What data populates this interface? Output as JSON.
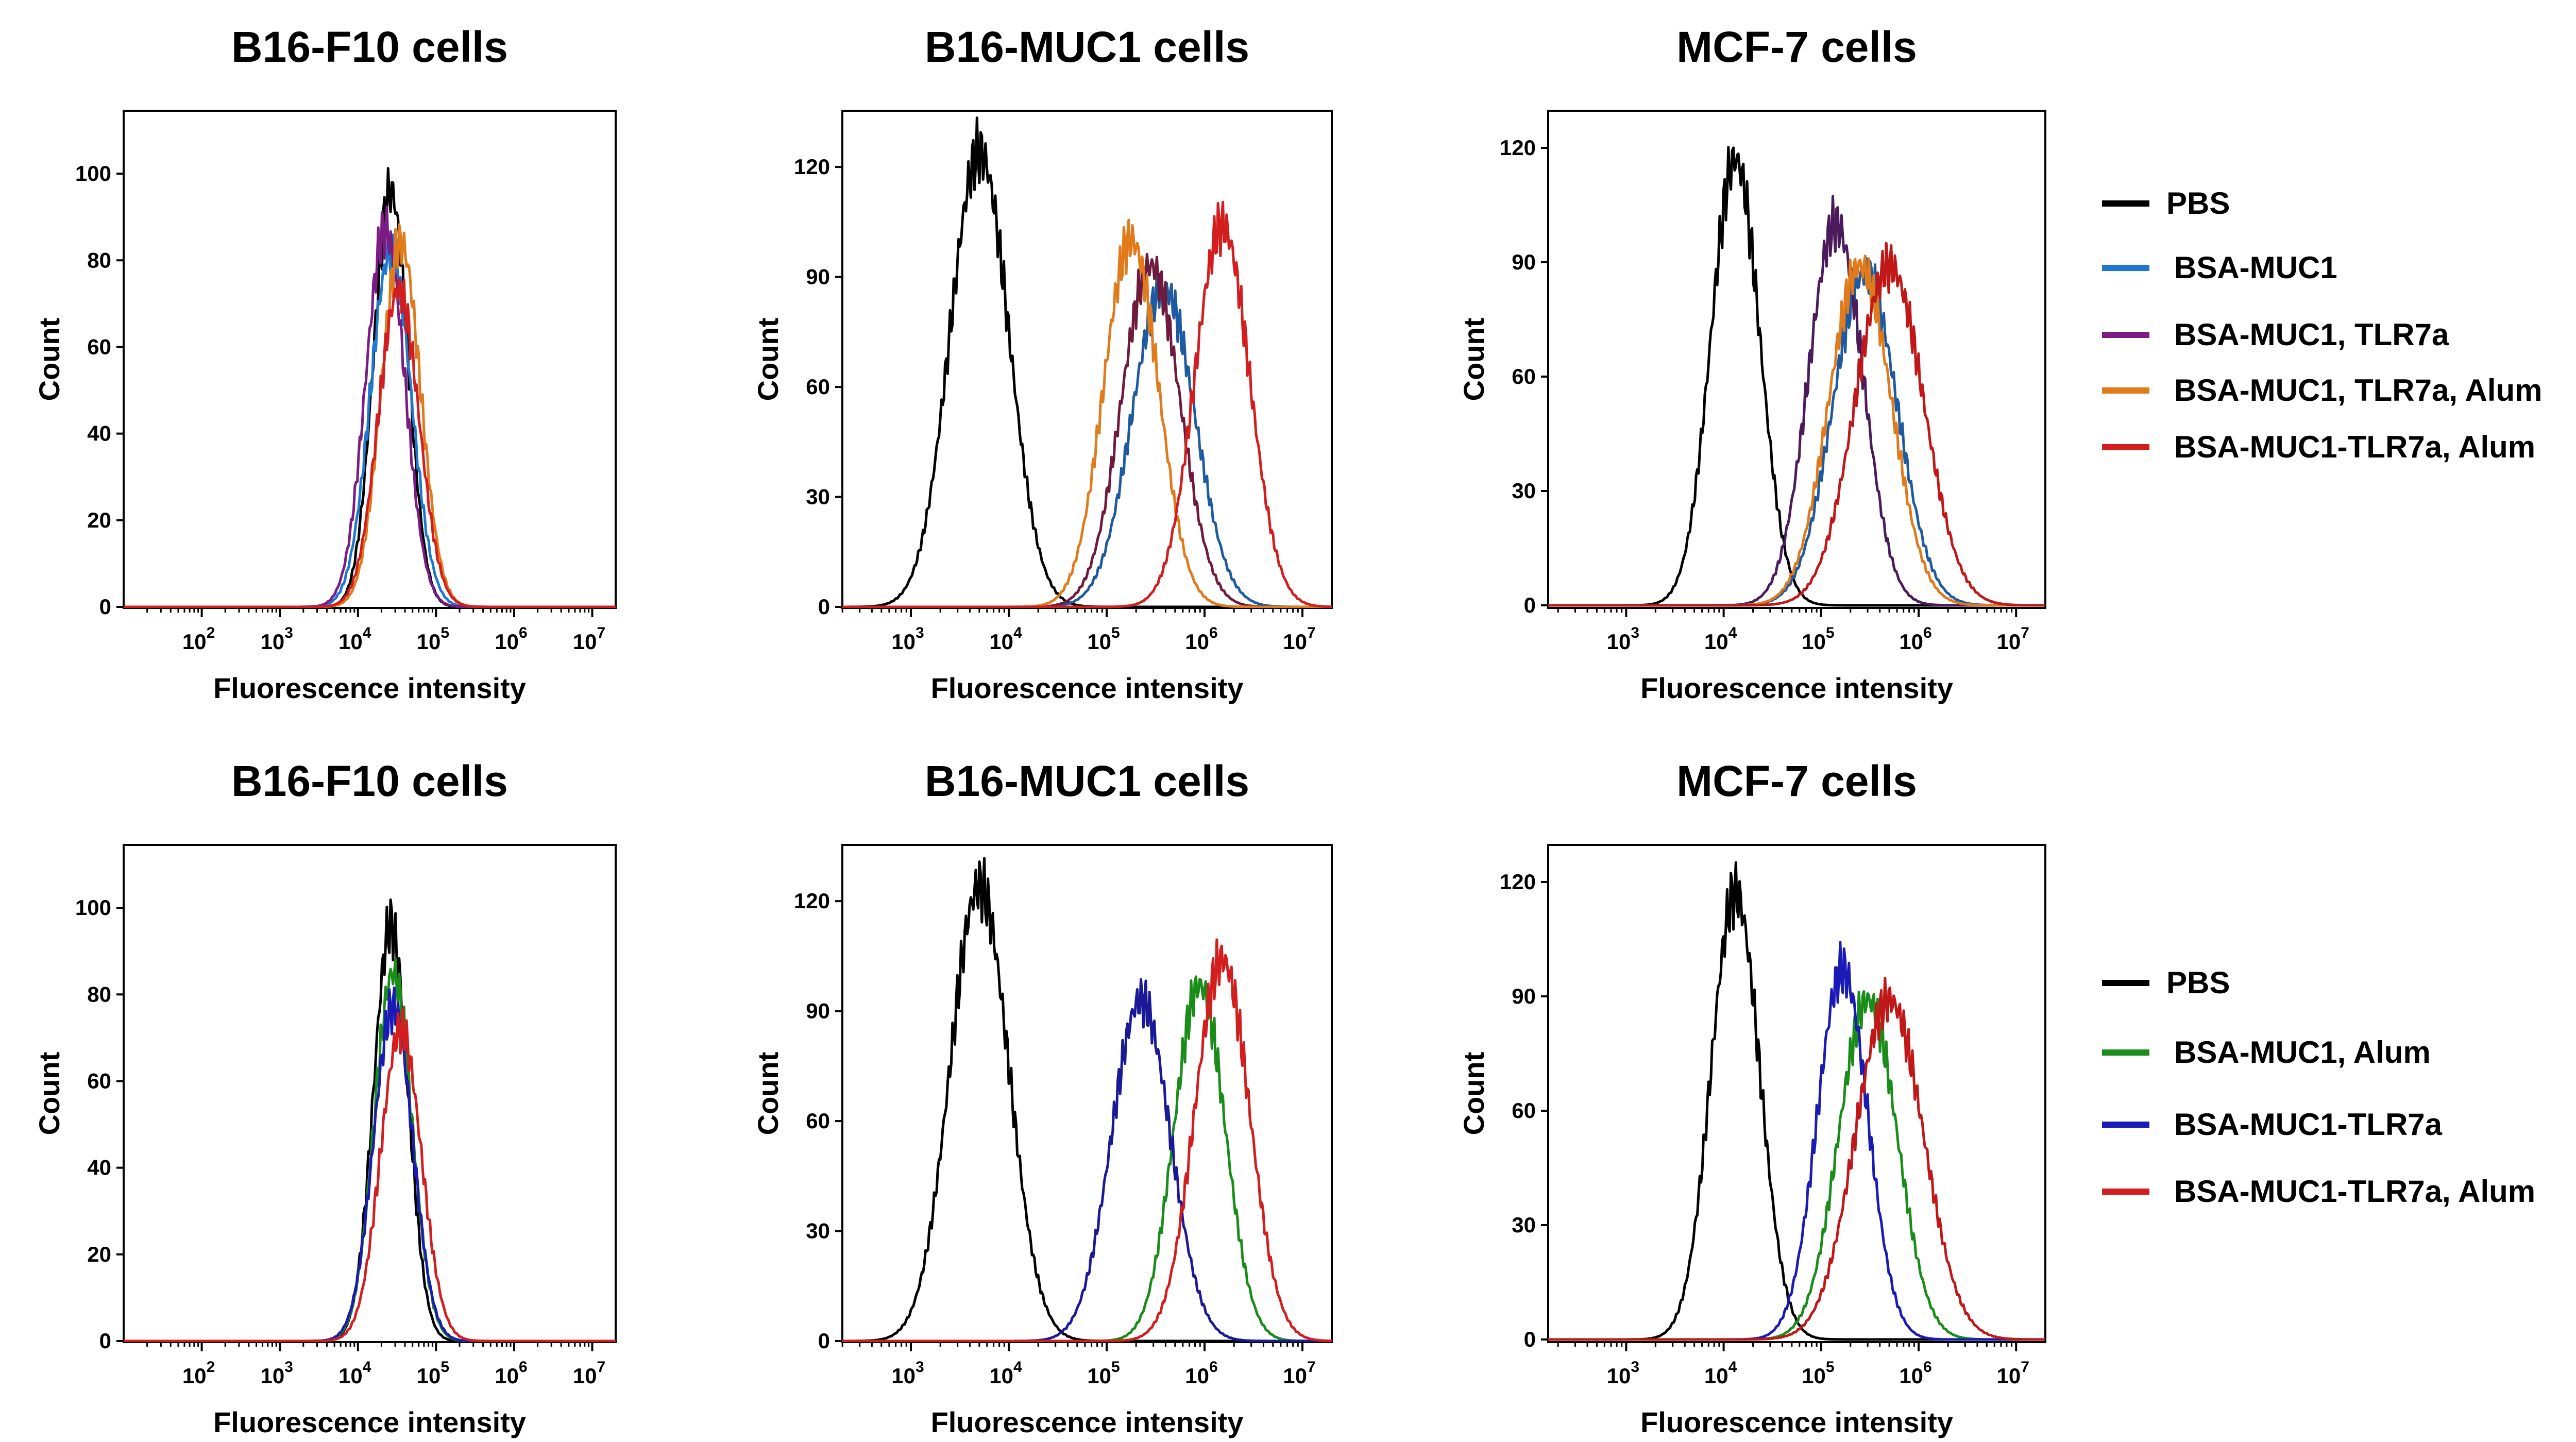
{
  "chart_data": [
    {
      "type": "line",
      "title": "B16-F10 cells",
      "xlabel": "Fluorescence intensity",
      "ylabel": "Count",
      "xscale": "log",
      "xlim_log10": [
        1.0,
        7.3
      ],
      "ylim": [
        0,
        110
      ],
      "xticks": [
        {
          "label": "10",
          "exp": "2",
          "log": 2
        },
        {
          "label": "10",
          "exp": "3",
          "log": 3
        },
        {
          "label": "10",
          "exp": "4",
          "log": 4
        },
        {
          "label": "10",
          "exp": "5",
          "log": 5
        },
        {
          "label": "10",
          "exp": "6",
          "log": 6
        },
        {
          "label": "10",
          "exp": "7",
          "log": 7
        }
      ],
      "yticks": [
        0,
        20,
        40,
        60,
        80,
        100
      ],
      "series": [
        {
          "name": "PBS",
          "color": "#000000",
          "peak_log": 4.42,
          "sigma": 0.22,
          "height": 96
        },
        {
          "name": "BSA-MUC1",
          "color": "#1e78d2",
          "peak_log": 4.42,
          "sigma": 0.26,
          "height": 82
        },
        {
          "name": "BSA-MUC1, TLR7a",
          "color": "#7b1c84",
          "peak_log": 4.35,
          "sigma": 0.25,
          "height": 87
        },
        {
          "name": "BSA-MUC1, TLR7a, Alum",
          "color": "#e07a1a",
          "peak_log": 4.55,
          "sigma": 0.25,
          "height": 84
        },
        {
          "name": "BSA-MUC1-TLR7a, Alum",
          "color": "#d21e1e",
          "peak_log": 4.52,
          "sigma": 0.26,
          "height": 73
        }
      ]
    },
    {
      "type": "line",
      "title": "B16-MUC1 cells",
      "xlabel": "Fluorescence intensity",
      "ylabel": "Count",
      "xscale": "log",
      "xlim_log10": [
        2.3,
        7.3
      ],
      "ylim": [
        0,
        130
      ],
      "xticks": [
        {
          "label": "10",
          "exp": "3",
          "log": 3
        },
        {
          "label": "10",
          "exp": "4",
          "log": 4
        },
        {
          "label": "10",
          "exp": "5",
          "log": 5
        },
        {
          "label": "10",
          "exp": "6",
          "log": 6
        },
        {
          "label": "10",
          "exp": "7",
          "log": 7
        }
      ],
      "yticks": [
        0,
        30,
        60,
        90,
        120
      ],
      "series": [
        {
          "name": "PBS",
          "color": "#000000",
          "peak_log": 3.7,
          "sigma": 0.3,
          "height": 124
        },
        {
          "name": "BSA-MUC1",
          "color": "#1e5aa0",
          "peak_log": 5.58,
          "sigma": 0.32,
          "height": 87
        },
        {
          "name": "BSA-MUC1, TLR7a",
          "color": "#6e1a3c",
          "peak_log": 5.45,
          "sigma": 0.3,
          "height": 93
        },
        {
          "name": "BSA-MUC1, TLR7a, Alum",
          "color": "#e07a1a",
          "peak_log": 5.25,
          "sigma": 0.28,
          "height": 100
        },
        {
          "name": "BSA-MUC1-TLR7a, Alum",
          "color": "#d21e1e",
          "peak_log": 6.18,
          "sigma": 0.28,
          "height": 104
        }
      ]
    },
    {
      "type": "line",
      "title": "MCF-7 cells",
      "xlabel": "Fluorescence intensity",
      "ylabel": "Count",
      "xscale": "log",
      "xlim_log10": [
        2.2,
        7.3
      ],
      "ylim": [
        0,
        125
      ],
      "xticks": [
        {
          "label": "10",
          "exp": "3",
          "log": 3
        },
        {
          "label": "10",
          "exp": "4",
          "log": 4
        },
        {
          "label": "10",
          "exp": "5",
          "log": 5
        },
        {
          "label": "10",
          "exp": "6",
          "log": 6
        },
        {
          "label": "10",
          "exp": "7",
          "log": 7
        }
      ],
      "yticks": [
        0,
        30,
        60,
        90,
        120
      ],
      "series": [
        {
          "name": "PBS",
          "color": "#000000",
          "peak_log": 4.12,
          "sigma": 0.25,
          "height": 117
        },
        {
          "name": "BSA-MUC1",
          "color": "#1e5aa0",
          "peak_log": 5.45,
          "sigma": 0.33,
          "height": 87
        },
        {
          "name": "BSA-MUC1, TLR7a",
          "color": "#4a1a5a",
          "peak_log": 5.15,
          "sigma": 0.28,
          "height": 100
        },
        {
          "name": "BSA-MUC1, TLR7a, Alum",
          "color": "#e07a1a",
          "peak_log": 5.4,
          "sigma": 0.32,
          "height": 89
        },
        {
          "name": "BSA-MUC1-TLR7a, Alum",
          "color": "#c01818",
          "peak_log": 5.7,
          "sigma": 0.35,
          "height": 89
        }
      ]
    },
    {
      "type": "line",
      "title": "B16-F10 cells",
      "xlabel": "Fluorescence intensity",
      "ylabel": "Count",
      "xscale": "log",
      "xlim_log10": [
        1.0,
        7.3
      ],
      "ylim": [
        0,
        110
      ],
      "xticks": [
        {
          "label": "10",
          "exp": "2",
          "log": 2
        },
        {
          "label": "10",
          "exp": "3",
          "log": 3
        },
        {
          "label": "10",
          "exp": "4",
          "log": 4
        },
        {
          "label": "10",
          "exp": "5",
          "log": 5
        },
        {
          "label": "10",
          "exp": "6",
          "log": 6
        },
        {
          "label": "10",
          "exp": "7",
          "log": 7
        }
      ],
      "yticks": [
        0,
        20,
        40,
        60,
        80,
        100
      ],
      "series": [
        {
          "name": "PBS",
          "color": "#000000",
          "peak_log": 4.42,
          "sigma": 0.22,
          "height": 96
        },
        {
          "name": "BSA-MUC1, Alum",
          "color": "#1a8c1a",
          "peak_log": 4.45,
          "sigma": 0.24,
          "height": 85
        },
        {
          "name": "BSA-MUC1-TLR7a",
          "color": "#1a1ab4",
          "peak_log": 4.45,
          "sigma": 0.25,
          "height": 77
        },
        {
          "name": "BSA-MUC1-TLR7a, Alum",
          "color": "#d21e1e",
          "peak_log": 4.55,
          "sigma": 0.26,
          "height": 72
        }
      ]
    },
    {
      "type": "line",
      "title": "B16-MUC1 cells",
      "xlabel": "Fluorescence intensity",
      "ylabel": "Count",
      "xscale": "log",
      "xlim_log10": [
        2.3,
        7.3
      ],
      "ylim": [
        0,
        130
      ],
      "xticks": [
        {
          "label": "10",
          "exp": "3",
          "log": 3
        },
        {
          "label": "10",
          "exp": "4",
          "log": 4
        },
        {
          "label": "10",
          "exp": "5",
          "log": 5
        },
        {
          "label": "10",
          "exp": "6",
          "log": 6
        },
        {
          "label": "10",
          "exp": "7",
          "log": 7
        }
      ],
      "yticks": [
        0,
        30,
        60,
        90,
        120
      ],
      "series": [
        {
          "name": "PBS",
          "color": "#000000",
          "peak_log": 3.7,
          "sigma": 0.3,
          "height": 124
        },
        {
          "name": "BSA-MUC1, Alum",
          "color": "#1a8c1a",
          "peak_log": 5.95,
          "sigma": 0.26,
          "height": 97
        },
        {
          "name": "BSA-MUC1-TLR7a",
          "color": "#1a1a96",
          "peak_log": 5.35,
          "sigma": 0.3,
          "height": 93
        },
        {
          "name": "BSA-MUC1-TLR7a, Alum",
          "color": "#d21e1e",
          "peak_log": 6.18,
          "sigma": 0.28,
          "height": 104
        }
      ]
    },
    {
      "type": "line",
      "title": "MCF-7 cells",
      "xlabel": "Fluorescence intensity",
      "ylabel": "Count",
      "xscale": "log",
      "xlim_log10": [
        2.2,
        7.3
      ],
      "ylim": [
        0,
        125
      ],
      "xticks": [
        {
          "label": "10",
          "exp": "3",
          "log": 3
        },
        {
          "label": "10",
          "exp": "4",
          "log": 4
        },
        {
          "label": "10",
          "exp": "5",
          "log": 5
        },
        {
          "label": "10",
          "exp": "6",
          "log": 6
        },
        {
          "label": "10",
          "exp": "7",
          "log": 7
        }
      ],
      "yticks": [
        0,
        30,
        60,
        90,
        120
      ],
      "series": [
        {
          "name": "PBS",
          "color": "#000000",
          "peak_log": 4.12,
          "sigma": 0.25,
          "height": 117
        },
        {
          "name": "BSA-MUC1, Alum",
          "color": "#1a8c1a",
          "peak_log": 5.48,
          "sigma": 0.3,
          "height": 89
        },
        {
          "name": "BSA-MUC1-TLR7a",
          "color": "#1a1ab4",
          "peak_log": 5.22,
          "sigma": 0.26,
          "height": 97
        },
        {
          "name": "BSA-MUC1-TLR7a, Alum",
          "color": "#c01818",
          "peak_log": 5.7,
          "sigma": 0.35,
          "height": 89
        }
      ]
    }
  ],
  "legends": [
    {
      "entries": [
        {
          "label": "PBS",
          "color": "#000000"
        },
        {
          "label": "BSA-MUC1",
          "color": "#1e78d2"
        },
        {
          "label": "BSA-MUC1, TLR7a",
          "color": "#7b1c84"
        },
        {
          "label": "BSA-MUC1, TLR7a, Alum",
          "color": "#e07a1a"
        },
        {
          "label": "BSA-MUC1-TLR7a, Alum",
          "color": "#d21e1e"
        }
      ]
    },
    {
      "entries": [
        {
          "label": "PBS",
          "color": "#000000"
        },
        {
          "label": "BSA-MUC1, Alum",
          "color": "#1a8c1a"
        },
        {
          "label": "BSA-MUC1-TLR7a",
          "color": "#1a1ab4"
        },
        {
          "label": "BSA-MUC1-TLR7a, Alum",
          "color": "#d21e1e"
        }
      ]
    }
  ]
}
